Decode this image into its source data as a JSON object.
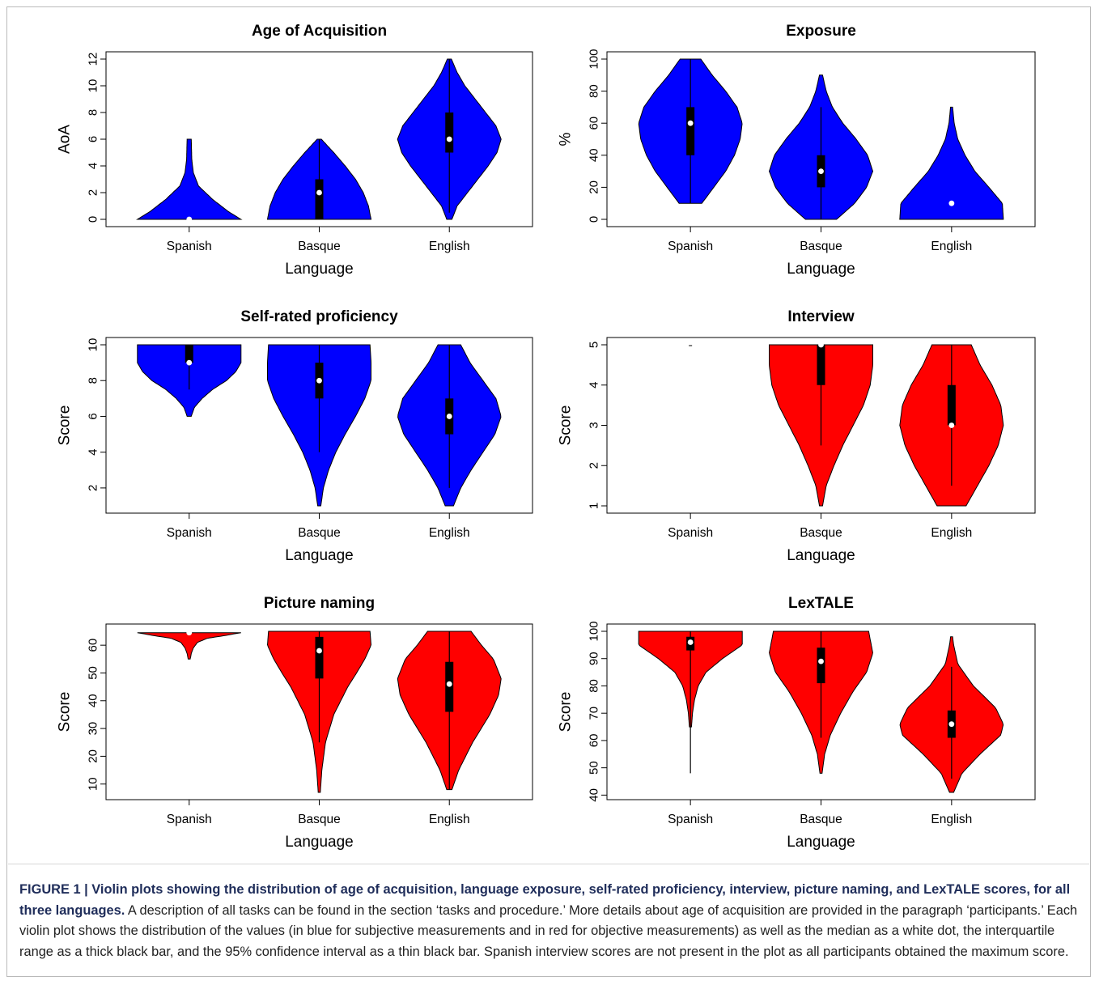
{
  "figure": {
    "caption_label": "FIGURE 1 | Violin plots showing the distribution of age of acquisition, language exposure, self-rated proficiency, interview, picture naming, and LexTALE scores, for all three languages.",
    "caption_text": " A description of all tasks can be found in the section ‘tasks and procedure.’ More details about age of acquisition are provided in the paragraph ‘participants.’ Each violin plot shows the distribution of the values (in blue for subjective measurements and in red for objective measurements) as well as the median as a white dot, the interquartile range as a thick black bar, and the 95% confidence interval as a thin black bar. Spanish interview scores are not present in the plot as all participants obtained the maximum score."
  },
  "colors": {
    "subjective": "#0000ff",
    "objective": "#ff0000",
    "box": "#000000",
    "median": "#ffffff"
  },
  "chart_data": [
    {
      "type": "violin",
      "title": "Age of Acquisition",
      "xlabel": "Language",
      "ylabel": "AoA",
      "color": "#0000ff",
      "ylim": [
        0,
        12
      ],
      "yticks": [
        "0",
        "2",
        "4",
        "6",
        "8",
        "10",
        "12"
      ],
      "categories": [
        "Spanish",
        "Basque",
        "English"
      ],
      "series": [
        {
          "category": "Spanish",
          "median": 0,
          "q1": 0,
          "q3": 0,
          "ci": [
            0,
            0
          ],
          "shape": [
            [
              0,
              1.0
            ],
            [
              0.6,
              0.75
            ],
            [
              1.5,
              0.45
            ],
            [
              2.5,
              0.18
            ],
            [
              3.5,
              0.08
            ],
            [
              4.5,
              0.05
            ],
            [
              6,
              0.04
            ]
          ]
        },
        {
          "category": "Basque",
          "median": 2,
          "q1": 0,
          "q3": 3,
          "ci": [
            0,
            6
          ],
          "shape": [
            [
              0,
              1.0
            ],
            [
              1,
              0.95
            ],
            [
              2,
              0.85
            ],
            [
              3,
              0.7
            ],
            [
              4,
              0.5
            ],
            [
              5,
              0.28
            ],
            [
              6,
              0.04
            ]
          ]
        },
        {
          "category": "English",
          "median": 6,
          "q1": 5,
          "q3": 8,
          "ci": [
            0.5,
            12
          ],
          "shape": [
            [
              0,
              0.05
            ],
            [
              1,
              0.15
            ],
            [
              2,
              0.35
            ],
            [
              3,
              0.55
            ],
            [
              4,
              0.75
            ],
            [
              5,
              0.92
            ],
            [
              6,
              1.0
            ],
            [
              7,
              0.9
            ],
            [
              8,
              0.7
            ],
            [
              9,
              0.5
            ],
            [
              10,
              0.3
            ],
            [
              11,
              0.15
            ],
            [
              12,
              0.04
            ]
          ]
        }
      ]
    },
    {
      "type": "violin",
      "title": "Exposure",
      "xlabel": "Language",
      "ylabel": "%",
      "color": "#0000ff",
      "ylim": [
        0,
        100
      ],
      "yticks": [
        "0",
        "20",
        "40",
        "60",
        "80",
        "100"
      ],
      "categories": [
        "Spanish",
        "Basque",
        "English"
      ],
      "series": [
        {
          "category": "Spanish",
          "median": 60,
          "q1": 40,
          "q3": 70,
          "ci": [
            10,
            100
          ],
          "shape": [
            [
              10,
              0.22
            ],
            [
              20,
              0.45
            ],
            [
              30,
              0.68
            ],
            [
              40,
              0.85
            ],
            [
              50,
              0.96
            ],
            [
              60,
              1.0
            ],
            [
              70,
              0.9
            ],
            [
              80,
              0.68
            ],
            [
              90,
              0.42
            ],
            [
              100,
              0.2
            ]
          ]
        },
        {
          "category": "Basque",
          "median": 30,
          "q1": 20,
          "q3": 40,
          "ci": [
            0,
            70
          ],
          "shape": [
            [
              0,
              0.3
            ],
            [
              10,
              0.65
            ],
            [
              20,
              0.88
            ],
            [
              30,
              1.0
            ],
            [
              40,
              0.9
            ],
            [
              50,
              0.68
            ],
            [
              60,
              0.42
            ],
            [
              70,
              0.22
            ],
            [
              80,
              0.1
            ],
            [
              90,
              0.03
            ]
          ]
        },
        {
          "category": "English",
          "median": 10,
          "q1": 10,
          "q3": 10,
          "ci": [
            10,
            10
          ],
          "shape": [
            [
              0,
              1.0
            ],
            [
              10,
              0.98
            ],
            [
              20,
              0.72
            ],
            [
              30,
              0.45
            ],
            [
              40,
              0.26
            ],
            [
              50,
              0.12
            ],
            [
              60,
              0.05
            ],
            [
              70,
              0.02
            ]
          ]
        }
      ]
    },
    {
      "type": "violin",
      "title": "Self-rated proficiency",
      "xlabel": "Language",
      "ylabel": "Score",
      "color": "#0000ff",
      "ylim": [
        1,
        10
      ],
      "yticks": [
        "2",
        "4",
        "6",
        "8",
        "10"
      ],
      "categories": [
        "Spanish",
        "Basque",
        "English"
      ],
      "series": [
        {
          "category": "Spanish",
          "median": 9,
          "q1": 9,
          "q3": 10,
          "ci": [
            7.5,
            10
          ],
          "shape": [
            [
              6,
              0.04
            ],
            [
              6.5,
              0.1
            ],
            [
              7,
              0.25
            ],
            [
              7.5,
              0.45
            ],
            [
              8,
              0.72
            ],
            [
              8.5,
              0.9
            ],
            [
              9,
              1.0
            ],
            [
              9.5,
              1.0
            ],
            [
              10,
              1.0
            ]
          ]
        },
        {
          "category": "Basque",
          "median": 8,
          "q1": 7,
          "q3": 9,
          "ci": [
            4,
            10
          ],
          "shape": [
            [
              1,
              0.03
            ],
            [
              2,
              0.08
            ],
            [
              3,
              0.18
            ],
            [
              4,
              0.32
            ],
            [
              5,
              0.5
            ],
            [
              6,
              0.7
            ],
            [
              7,
              0.88
            ],
            [
              8,
              1.0
            ],
            [
              9,
              1.0
            ],
            [
              10,
              0.98
            ]
          ]
        },
        {
          "category": "English",
          "median": 6,
          "q1": 5,
          "q3": 7,
          "ci": [
            2,
            10
          ],
          "shape": [
            [
              1,
              0.08
            ],
            [
              2,
              0.22
            ],
            [
              3,
              0.42
            ],
            [
              4,
              0.65
            ],
            [
              5,
              0.88
            ],
            [
              6,
              1.0
            ],
            [
              7,
              0.9
            ],
            [
              8,
              0.65
            ],
            [
              9,
              0.4
            ],
            [
              10,
              0.22
            ]
          ]
        }
      ]
    },
    {
      "type": "violin",
      "title": "Interview",
      "xlabel": "Language",
      "ylabel": "Score",
      "color": "#ff0000",
      "ylim": [
        1,
        5
      ],
      "yticks": [
        "1",
        "2",
        "3",
        "4",
        "5"
      ],
      "categories": [
        "Spanish",
        "Basque",
        "English"
      ],
      "series": [
        {
          "category": "Spanish",
          "median": 5,
          "q1": 5,
          "q3": 5,
          "ci": [
            5,
            5
          ],
          "shape": []
        },
        {
          "category": "Basque",
          "median": 5,
          "q1": 4,
          "q3": 5,
          "ci": [
            2.5,
            5
          ],
          "shape": [
            [
              1,
              0.03
            ],
            [
              1.5,
              0.1
            ],
            [
              2,
              0.25
            ],
            [
              2.5,
              0.42
            ],
            [
              3,
              0.62
            ],
            [
              3.5,
              0.82
            ],
            [
              4,
              0.95
            ],
            [
              4.5,
              1.0
            ],
            [
              5,
              1.0
            ]
          ]
        },
        {
          "category": "English",
          "median": 3,
          "q1": 3,
          "q3": 4,
          "ci": [
            1.5,
            5
          ],
          "shape": [
            [
              1,
              0.28
            ],
            [
              1.5,
              0.5
            ],
            [
              2,
              0.72
            ],
            [
              2.5,
              0.9
            ],
            [
              3,
              1.0
            ],
            [
              3.5,
              0.95
            ],
            [
              4,
              0.78
            ],
            [
              4.5,
              0.55
            ],
            [
              5,
              0.38
            ]
          ]
        }
      ]
    },
    {
      "type": "violin",
      "title": "Picture naming",
      "xlabel": "Language",
      "ylabel": "Score",
      "color": "#ff0000",
      "ylim": [
        7,
        65
      ],
      "yticks": [
        "10",
        "20",
        "30",
        "40",
        "50",
        "60"
      ],
      "categories": [
        "Spanish",
        "Basque",
        "English"
      ],
      "series": [
        {
          "category": "Spanish",
          "median": 64.5,
          "q1": 64.5,
          "q3": 64.5,
          "ci": [
            64.5,
            64.5
          ],
          "shape": [
            [
              55,
              0.02
            ],
            [
              57,
              0.04
            ],
            [
              59,
              0.08
            ],
            [
              61,
              0.16
            ],
            [
              62.5,
              0.35
            ],
            [
              63.5,
              0.7
            ],
            [
              64.5,
              1.0
            ]
          ]
        },
        {
          "category": "Basque",
          "median": 58,
          "q1": 48,
          "q3": 63,
          "ci": [
            25,
            65
          ],
          "shape": [
            [
              7,
              0.02
            ],
            [
              15,
              0.05
            ],
            [
              25,
              0.12
            ],
            [
              35,
              0.28
            ],
            [
              45,
              0.55
            ],
            [
              50,
              0.72
            ],
            [
              55,
              0.88
            ],
            [
              60,
              1.0
            ],
            [
              65,
              0.98
            ]
          ]
        },
        {
          "category": "English",
          "median": 46,
          "q1": 36,
          "q3": 54,
          "ci": [
            8,
            65
          ],
          "shape": [
            [
              8,
              0.05
            ],
            [
              15,
              0.18
            ],
            [
              25,
              0.45
            ],
            [
              35,
              0.78
            ],
            [
              42,
              0.95
            ],
            [
              48,
              1.0
            ],
            [
              55,
              0.85
            ],
            [
              60,
              0.62
            ],
            [
              65,
              0.42
            ]
          ]
        }
      ]
    },
    {
      "type": "violin",
      "title": "LexTALE",
      "xlabel": "Language",
      "ylabel": "Score",
      "color": "#ff0000",
      "ylim": [
        41,
        100
      ],
      "yticks": [
        "40",
        "50",
        "60",
        "70",
        "80",
        "90",
        "100"
      ],
      "categories": [
        "Spanish",
        "Basque",
        "English"
      ],
      "series": [
        {
          "category": "Spanish",
          "median": 96,
          "q1": 93,
          "q3": 98,
          "ci": [
            48,
            100
          ],
          "shape": [
            [
              65,
              0.02
            ],
            [
              70,
              0.04
            ],
            [
              75,
              0.08
            ],
            [
              80,
              0.15
            ],
            [
              85,
              0.3
            ],
            [
              90,
              0.62
            ],
            [
              95,
              1.0
            ],
            [
              100,
              1.0
            ]
          ]
        },
        {
          "category": "Basque",
          "median": 89,
          "q1": 81,
          "q3": 94,
          "ci": [
            61,
            100
          ],
          "shape": [
            [
              48,
              0.02
            ],
            [
              55,
              0.07
            ],
            [
              62,
              0.18
            ],
            [
              70,
              0.38
            ],
            [
              78,
              0.62
            ],
            [
              85,
              0.88
            ],
            [
              92,
              1.0
            ],
            [
              100,
              0.92
            ]
          ]
        },
        {
          "category": "English",
          "median": 66,
          "q1": 61,
          "q3": 71,
          "ci": [
            46,
            87
          ],
          "shape": [
            [
              41,
              0.04
            ],
            [
              48,
              0.2
            ],
            [
              55,
              0.55
            ],
            [
              62,
              0.95
            ],
            [
              66,
              1.0
            ],
            [
              72,
              0.85
            ],
            [
              80,
              0.42
            ],
            [
              88,
              0.12
            ],
            [
              95,
              0.04
            ],
            [
              98,
              0.02
            ]
          ]
        }
      ]
    }
  ]
}
